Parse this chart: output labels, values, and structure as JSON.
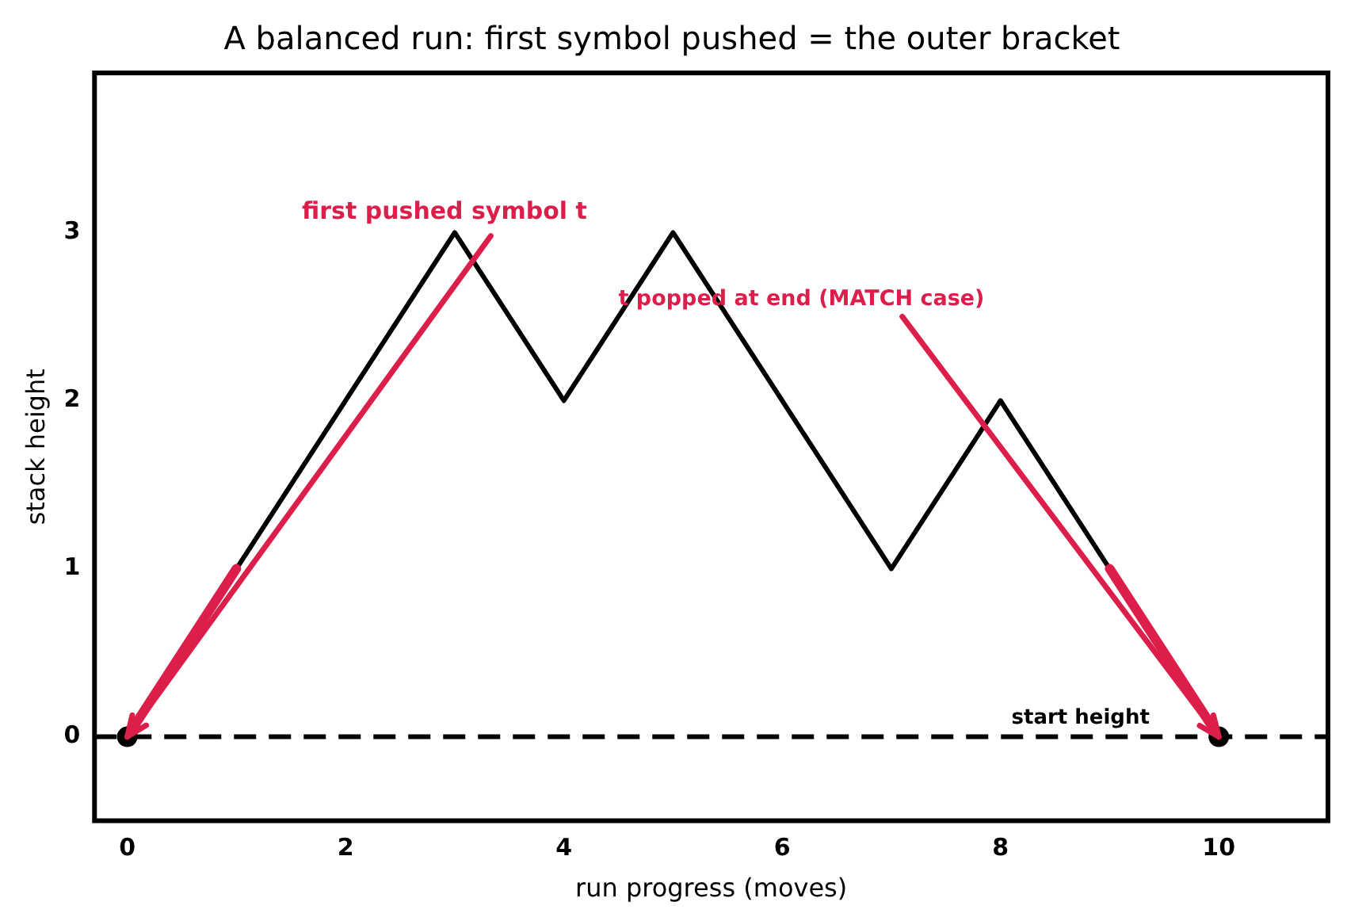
{
  "chart_data": {
    "type": "line",
    "title": "A balanced run: first symbol pushed = the outer bracket",
    "xlabel": "run progress (moves)",
    "ylabel": "stack height",
    "series": [
      {
        "color": "#000000",
        "x": [
          0,
          1,
          2,
          3,
          4,
          5,
          6,
          7,
          8,
          9,
          10
        ],
        "values": [
          0,
          1,
          2,
          3,
          2,
          3,
          2,
          1,
          2,
          1,
          0
        ]
      },
      {
        "color": "#dc1e4a",
        "x": [
          0,
          1
        ],
        "values": [
          0,
          1
        ]
      },
      {
        "color": "#dc1e4a",
        "x": [
          9,
          10
        ],
        "values": [
          1,
          0
        ]
      },
      {
        "type": "scatter",
        "color": "#000000",
        "x": [
          0,
          10
        ],
        "values": [
          0,
          0
        ]
      }
    ],
    "xlim": [
      -0.3,
      11
    ],
    "xticks": [
      0,
      2,
      4,
      6,
      8,
      10
    ],
    "ylim": [
      -0.5,
      3.95
    ],
    "yticks": [
      0,
      1,
      2,
      3
    ],
    "ref_lines": [
      {
        "axis": "y",
        "value": 0,
        "label": "start height",
        "color": "#000000",
        "line_style": "dashed"
      }
    ],
    "annotations": [
      {
        "text": "first pushed symbol t",
        "x": 0,
        "y": 0
      },
      {
        "text": "t popped at end (MATCH case)",
        "x": 10,
        "y": 0
      }
    ],
    "grid": false,
    "legend": false
  }
}
